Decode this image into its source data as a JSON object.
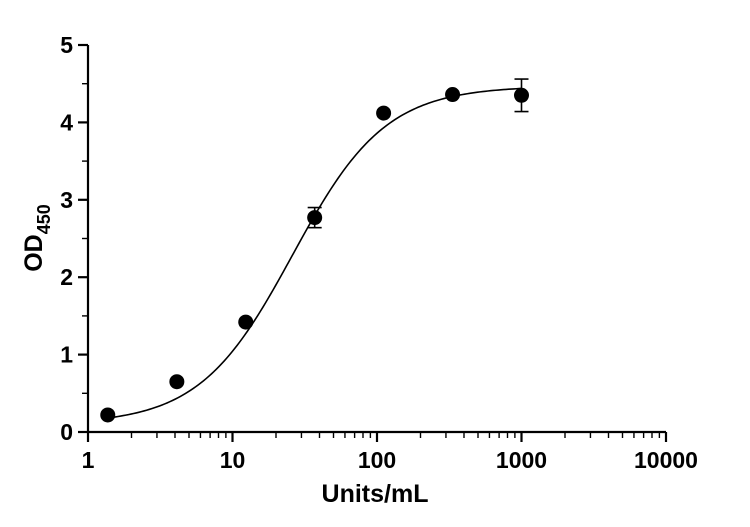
{
  "chart_data": {
    "type": "scatter",
    "xscale": "log",
    "xlabel": "Units/mL",
    "ylabel_main": "OD",
    "ylabel_sub": "450",
    "xlim": [
      1,
      10000
    ],
    "ylim": [
      0,
      5
    ],
    "xticks": [
      1,
      10,
      100,
      1000,
      10000
    ],
    "xtick_labels": [
      "1",
      "10",
      "100",
      "1000",
      "10000"
    ],
    "yticks": [
      0,
      1,
      2,
      3,
      4,
      5
    ],
    "ytick_labels": [
      "0",
      "1",
      "2",
      "3",
      "4",
      "5"
    ],
    "grid": false,
    "series": [
      {
        "x": [
          1.37,
          4.12,
          12.35,
          37.04,
          111.1,
          333.3,
          1000
        ],
        "y": [
          0.22,
          0.65,
          1.42,
          2.77,
          4.12,
          4.36,
          4.35
        ],
        "yerr": [
          0,
          0,
          0,
          0.13,
          0,
          0,
          0.21
        ]
      }
    ],
    "fit": {
      "type": "4PL",
      "bottom": 0.1,
      "top": 4.47,
      "ec50": 26,
      "hill": 1.35
    },
    "colors": {
      "marker": "#000000",
      "line": "#000000"
    }
  }
}
